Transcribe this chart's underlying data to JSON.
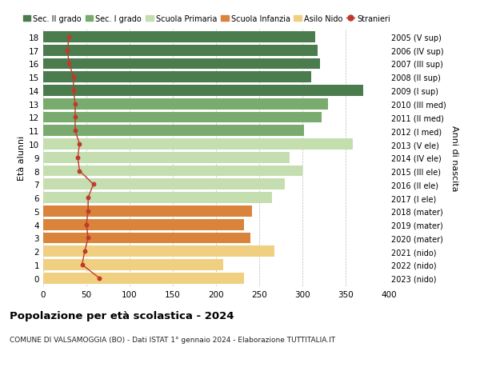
{
  "ages": [
    18,
    17,
    16,
    15,
    14,
    13,
    12,
    11,
    10,
    9,
    8,
    7,
    6,
    5,
    4,
    3,
    2,
    1,
    0
  ],
  "years": [
    "2005 (V sup)",
    "2006 (IV sup)",
    "2007 (III sup)",
    "2008 (II sup)",
    "2009 (I sup)",
    "2010 (III med)",
    "2011 (II med)",
    "2012 (I med)",
    "2013 (V ele)",
    "2014 (IV ele)",
    "2015 (III ele)",
    "2016 (II ele)",
    "2017 (I ele)",
    "2018 (mater)",
    "2019 (mater)",
    "2020 (mater)",
    "2021 (nido)",
    "2022 (nido)",
    "2023 (nido)"
  ],
  "bar_values": [
    315,
    318,
    320,
    310,
    370,
    330,
    322,
    302,
    358,
    285,
    300,
    280,
    265,
    242,
    232,
    240,
    268,
    208,
    232
  ],
  "stranieri": [
    30,
    28,
    30,
    35,
    35,
    37,
    37,
    37,
    42,
    40,
    42,
    58,
    52,
    52,
    50,
    52,
    48,
    45,
    65
  ],
  "bar_colors": [
    "#4a7c4e",
    "#4a7c4e",
    "#4a7c4e",
    "#4a7c4e",
    "#4a7c4e",
    "#7aab6e",
    "#7aab6e",
    "#7aab6e",
    "#c5deb0",
    "#c5deb0",
    "#c5deb0",
    "#c5deb0",
    "#c5deb0",
    "#d9843a",
    "#d9843a",
    "#d9843a",
    "#f0d080",
    "#f0d080",
    "#f0d080"
  ],
  "legend_labels": [
    "Sec. II grado",
    "Sec. I grado",
    "Scuola Primaria",
    "Scuola Infanzia",
    "Asilo Nido",
    "Stranieri"
  ],
  "legend_colors": [
    "#4a7c4e",
    "#7aab6e",
    "#c5deb0",
    "#d9843a",
    "#f0d080",
    "#c0392b"
  ],
  "stranieri_color": "#c0392b",
  "title": "Popolazione per età scolastica - 2024",
  "subtitle": "COMUNE DI VALSAMOGGIA (BO) - Dati ISTAT 1° gennaio 2024 - Elaborazione TUTTITALIA.IT",
  "ylabel_left": "Età alunni",
  "ylabel_right": "Anni di nascita",
  "xlim": [
    0,
    400
  ],
  "xticks": [
    0,
    50,
    100,
    150,
    200,
    250,
    300,
    350,
    400
  ],
  "bg_color": "#ffffff",
  "bar_height": 0.82
}
